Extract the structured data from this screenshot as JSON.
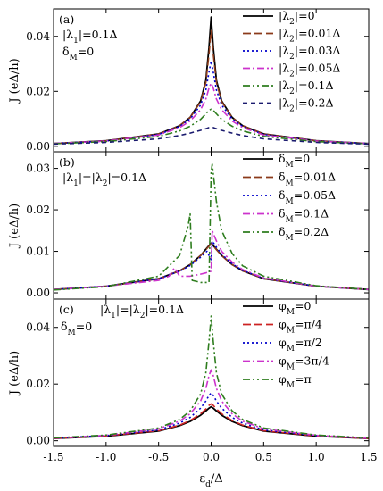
{
  "chart_data": [
    {
      "type": "line",
      "panel_label": "(a)",
      "annotations": [
        "|λ1|=0.1Δ",
        "δM=0"
      ],
      "ylabel": "J (eΔ/h)",
      "xlim": [
        -1.5,
        1.5
      ],
      "ylim": [
        -0.002,
        0.05
      ],
      "yticks": [
        0.0,
        0.02,
        0.04
      ],
      "ytick_labels": [
        "0.00",
        "0.02",
        "0.04"
      ],
      "legend_position": "top-right",
      "x": [
        -1.5,
        -1.0,
        -0.5,
        -0.3,
        -0.2,
        -0.1,
        -0.05,
        -0.02,
        0.0,
        0.02,
        0.05,
        0.1,
        0.2,
        0.3,
        0.5,
        1.0,
        1.5
      ],
      "series": [
        {
          "name": "|λ2|=0",
          "color": "#000000",
          "dash": "solid",
          "values": [
            0.001,
            0.002,
            0.0045,
            0.0075,
            0.0105,
            0.0165,
            0.024,
            0.036,
            0.047,
            0.036,
            0.024,
            0.0165,
            0.0105,
            0.0075,
            0.0045,
            0.002,
            0.001
          ]
        },
        {
          "name": "|λ2|=0.01Δ",
          "color": "#8b3a1a",
          "dash": "long-dash",
          "values": [
            0.001,
            0.002,
            0.0045,
            0.0075,
            0.0105,
            0.0162,
            0.0232,
            0.0335,
            0.042,
            0.0335,
            0.0232,
            0.0162,
            0.0105,
            0.0075,
            0.0045,
            0.002,
            0.001
          ]
        },
        {
          "name": "|λ2|=0.03Δ",
          "color": "#0000cc",
          "dash": "dot",
          "values": [
            0.001,
            0.0019,
            0.0043,
            0.0072,
            0.01,
            0.015,
            0.0205,
            0.027,
            0.031,
            0.027,
            0.0205,
            0.015,
            0.01,
            0.0072,
            0.0043,
            0.0019,
            0.001
          ]
        },
        {
          "name": "|λ2|=0.05Δ",
          "color": "#cc33cc",
          "dash": "dash-dot",
          "values": [
            0.001,
            0.0019,
            0.0041,
            0.0068,
            0.0092,
            0.0133,
            0.0172,
            0.0212,
            0.023,
            0.0212,
            0.0172,
            0.0133,
            0.0092,
            0.0068,
            0.0041,
            0.0019,
            0.001
          ]
        },
        {
          "name": "|λ2|=0.1Δ",
          "color": "#2e7d1e",
          "dash": "dash-dot-dot",
          "values": [
            0.0009,
            0.0017,
            0.0036,
            0.0056,
            0.0073,
            0.0098,
            0.0118,
            0.0131,
            0.0135,
            0.0131,
            0.0118,
            0.0098,
            0.0073,
            0.0056,
            0.0036,
            0.0017,
            0.0009
          ]
        },
        {
          "name": "|λ2|=0.2Δ",
          "color": "#1a1a6e",
          "dash": "short-dash",
          "values": [
            0.0008,
            0.0014,
            0.0027,
            0.0039,
            0.0048,
            0.0058,
            0.0064,
            0.0068,
            0.0069,
            0.0068,
            0.0064,
            0.0058,
            0.0048,
            0.0039,
            0.0027,
            0.0014,
            0.0008
          ]
        }
      ]
    },
    {
      "type": "line",
      "panel_label": "(b)",
      "annotations": [
        "|λ1|=|λ2|=0.1Δ"
      ],
      "ylabel": "J (eΔ/h)",
      "xlim": [
        -1.5,
        1.5
      ],
      "ylim": [
        -0.0015,
        0.034
      ],
      "yticks": [
        0.0,
        0.01,
        0.02,
        0.03
      ],
      "ytick_labels": [
        "0.00",
        "0.01",
        "0.02",
        "0.03"
      ],
      "legend_position": "top-right",
      "series": [
        {
          "name": "δM=0",
          "color": "#000000",
          "dash": "solid",
          "x": [
            -1.5,
            -1.0,
            -0.5,
            -0.3,
            -0.2,
            -0.1,
            -0.05,
            0.0,
            0.05,
            0.1,
            0.2,
            0.3,
            0.5,
            1.0,
            1.5
          ],
          "values": [
            0.0008,
            0.0016,
            0.0034,
            0.0053,
            0.0068,
            0.009,
            0.0105,
            0.012,
            0.0105,
            0.009,
            0.0068,
            0.0053,
            0.0034,
            0.0016,
            0.0008
          ]
        },
        {
          "name": "δM=0.01Δ",
          "color": "#8b3a1a",
          "dash": "long-dash",
          "x": [
            -1.5,
            -1.0,
            -0.5,
            -0.3,
            -0.2,
            -0.1,
            -0.05,
            -0.01,
            0.0,
            0.01,
            0.05,
            0.1,
            0.2,
            0.3,
            0.5,
            1.0,
            1.5
          ],
          "values": [
            0.0008,
            0.0016,
            0.0034,
            0.0053,
            0.0068,
            0.009,
            0.0104,
            0.0115,
            0.0117,
            0.0116,
            0.0104,
            0.009,
            0.0068,
            0.0053,
            0.0034,
            0.0016,
            0.0008
          ]
        },
        {
          "name": "δM=0.05Δ",
          "color": "#0000cc",
          "dash": "dot",
          "x": [
            -1.5,
            -1.0,
            -0.5,
            -0.3,
            -0.2,
            -0.1,
            -0.05,
            -0.04,
            0.0,
            0.01,
            0.05,
            0.1,
            0.2,
            0.3,
            0.5,
            1.0,
            1.5
          ],
          "values": [
            0.0008,
            0.0016,
            0.0034,
            0.0052,
            0.0066,
            0.0086,
            0.0098,
            0.01,
            0.008,
            0.0125,
            0.011,
            0.0093,
            0.007,
            0.0054,
            0.0035,
            0.0016,
            0.0008
          ]
        },
        {
          "name": "δM=0.1Δ",
          "color": "#cc33cc",
          "dash": "dash-dot",
          "x": [
            -1.5,
            -1.0,
            -0.5,
            -0.4,
            -0.35,
            -0.3,
            -0.2,
            -0.1,
            -0.05,
            0.0,
            0.01,
            0.05,
            0.1,
            0.2,
            0.3,
            0.5,
            1.0,
            1.5
          ],
          "values": [
            0.0008,
            0.0016,
            0.003,
            0.004,
            0.006,
            0.004,
            0.004,
            0.0045,
            0.0048,
            0.0052,
            0.015,
            0.0125,
            0.01,
            0.0074,
            0.0056,
            0.0036,
            0.0016,
            0.0008
          ]
        },
        {
          "name": "δM=0.2Δ",
          "color": "#2e7d1e",
          "dash": "dash-dot-dot",
          "x": [
            -1.5,
            -1.0,
            -0.5,
            -0.3,
            -0.22,
            -0.2,
            -0.18,
            -0.1,
            -0.02,
            0.0,
            0.01,
            0.05,
            0.1,
            0.2,
            0.3,
            0.5,
            1.0,
            1.5
          ],
          "values": [
            0.0007,
            0.0015,
            0.004,
            0.009,
            0.016,
            0.019,
            0.003,
            0.0025,
            0.0025,
            0.029,
            0.031,
            0.022,
            0.015,
            0.0095,
            0.0065,
            0.004,
            0.0017,
            0.0008
          ]
        }
      ]
    },
    {
      "type": "line",
      "panel_label": "(c)",
      "annotations": [
        "|λ1|=|λ2|=0.1Δ",
        "δM=0"
      ],
      "ylabel": "J (eΔ/h)",
      "xlabel": "εd/Δ",
      "xlim": [
        -1.5,
        1.5
      ],
      "xticks": [
        -1.5,
        -1.0,
        -0.5,
        0.0,
        0.5,
        1.0,
        1.5
      ],
      "xtick_labels": [
        "-1.5",
        "-1.0",
        "-0.5",
        "0.0",
        "0.5",
        "1.0",
        "1.5"
      ],
      "ylim": [
        -0.002,
        0.05
      ],
      "yticks": [
        0.0,
        0.02,
        0.04
      ],
      "ytick_labels": [
        "0.00",
        "0.02",
        "0.04"
      ],
      "legend_position": "top-right",
      "x": [
        -1.5,
        -1.0,
        -0.5,
        -0.3,
        -0.2,
        -0.1,
        -0.05,
        -0.02,
        0.0,
        0.02,
        0.05,
        0.1,
        0.2,
        0.3,
        0.5,
        1.0,
        1.5
      ],
      "series": [
        {
          "name": "φM=0",
          "color": "#000000",
          "dash": "solid",
          "values": [
            0.0008,
            0.0016,
            0.0034,
            0.0053,
            0.0068,
            0.009,
            0.0105,
            0.0115,
            0.012,
            0.0115,
            0.0105,
            0.009,
            0.0068,
            0.0053,
            0.0034,
            0.0016,
            0.0008
          ]
        },
        {
          "name": "φM=π/4",
          "color": "#cc2222",
          "dash": "long-dash",
          "values": [
            0.0008,
            0.0017,
            0.0035,
            0.0055,
            0.0071,
            0.0095,
            0.0112,
            0.0125,
            0.013,
            0.0125,
            0.0112,
            0.0095,
            0.0071,
            0.0055,
            0.0035,
            0.0017,
            0.0008
          ]
        },
        {
          "name": "φM=π/2",
          "color": "#0000cc",
          "dash": "dot",
          "values": [
            0.0009,
            0.0018,
            0.0038,
            0.0062,
            0.0082,
            0.0115,
            0.014,
            0.016,
            0.0168,
            0.016,
            0.014,
            0.0115,
            0.0082,
            0.0062,
            0.0038,
            0.0018,
            0.0009
          ]
        },
        {
          "name": "φM=3π/4",
          "color": "#cc33cc",
          "dash": "dash-dot",
          "values": [
            0.0009,
            0.0019,
            0.0042,
            0.0069,
            0.0095,
            0.014,
            0.0185,
            0.023,
            0.025,
            0.023,
            0.0185,
            0.014,
            0.0095,
            0.0069,
            0.0042,
            0.0019,
            0.0009
          ]
        },
        {
          "name": "φM=π",
          "color": "#2e7d1e",
          "dash": "dash-dot-dot",
          "values": [
            0.001,
            0.002,
            0.0045,
            0.0075,
            0.0105,
            0.0165,
            0.024,
            0.035,
            0.044,
            0.035,
            0.024,
            0.0165,
            0.0105,
            0.0075,
            0.0045,
            0.002,
            0.001
          ]
        }
      ]
    }
  ]
}
